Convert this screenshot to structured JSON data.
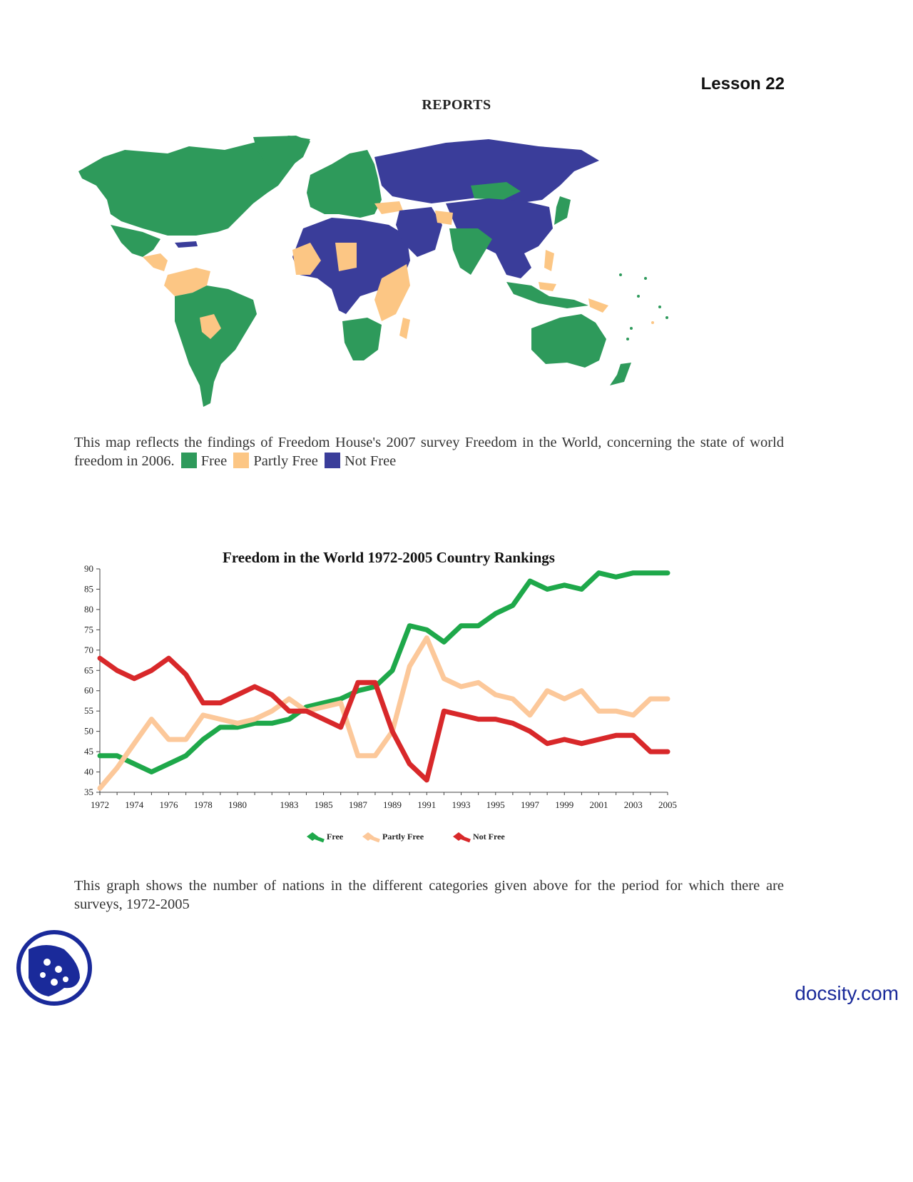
{
  "header": {
    "lesson": "Lesson 22",
    "title": "REPORTS"
  },
  "map": {
    "caption_text": "This map reflects the findings of Freedom House's 2007 survey Freedom in the World, concerning the state of world freedom in 2006.",
    "legend": [
      {
        "label": "Free",
        "color": "#2e9a5b"
      },
      {
        "label": "Partly Free",
        "color": "#fcc684"
      },
      {
        "label": "Not Free",
        "color": "#3a3d9a"
      }
    ]
  },
  "chart_caption": "This graph shows the number of nations in the different categories given above for the period for which there are surveys, 1972-2005",
  "chart_data": {
    "type": "line",
    "title": "Freedom in the World 1972-2005 Country Rankings",
    "xlabel": "",
    "ylabel": "",
    "x": [
      1972,
      1973,
      1974,
      1975,
      1976,
      1977,
      1978,
      1979,
      1980,
      1981,
      1982,
      1983,
      1984,
      1985,
      1986,
      1987,
      1988,
      1989,
      1990,
      1991,
      1992,
      1993,
      1994,
      1995,
      1996,
      1997,
      1998,
      1999,
      2000,
      2001,
      2002,
      2003,
      2004,
      2005
    ],
    "xticks": [
      1972,
      1974,
      1976,
      1978,
      1980,
      1983,
      1985,
      1987,
      1989,
      1991,
      1993,
      1995,
      1997,
      1999,
      2001,
      2003,
      2005
    ],
    "yticks": [
      35,
      40,
      45,
      50,
      55,
      60,
      65,
      70,
      75,
      80,
      85,
      90
    ],
    "ylim": [
      35,
      90
    ],
    "legend_position": "bottom",
    "grid": false,
    "series": [
      {
        "name": "Free",
        "color": "#1ea84a",
        "values": [
          44,
          44,
          42,
          40,
          42,
          44,
          48,
          51,
          51,
          52,
          52,
          53,
          56,
          57,
          58,
          60,
          61,
          65,
          76,
          75,
          72,
          76,
          76,
          79,
          81,
          87,
          85,
          86,
          85,
          89,
          88,
          89,
          89,
          89
        ]
      },
      {
        "name": "Partly Free",
        "color": "#fcc89a",
        "values": [
          36,
          41,
          47,
          53,
          48,
          48,
          54,
          53,
          52,
          53,
          55,
          58,
          55,
          56,
          57,
          44,
          44,
          50,
          66,
          73,
          63,
          61,
          62,
          59,
          58,
          54,
          60,
          58,
          60,
          55,
          55,
          54,
          58,
          58
        ]
      },
      {
        "name": "Not Free",
        "color": "#d8282a",
        "values": [
          68,
          65,
          63,
          65,
          68,
          64,
          57,
          57,
          59,
          61,
          59,
          55,
          55,
          53,
          51,
          62,
          62,
          50,
          42,
          38,
          55,
          54,
          53,
          53,
          52,
          50,
          47,
          48,
          47,
          48,
          49,
          49,
          45,
          45
        ]
      }
    ]
  },
  "footer": {
    "brand": "docsity.com"
  }
}
